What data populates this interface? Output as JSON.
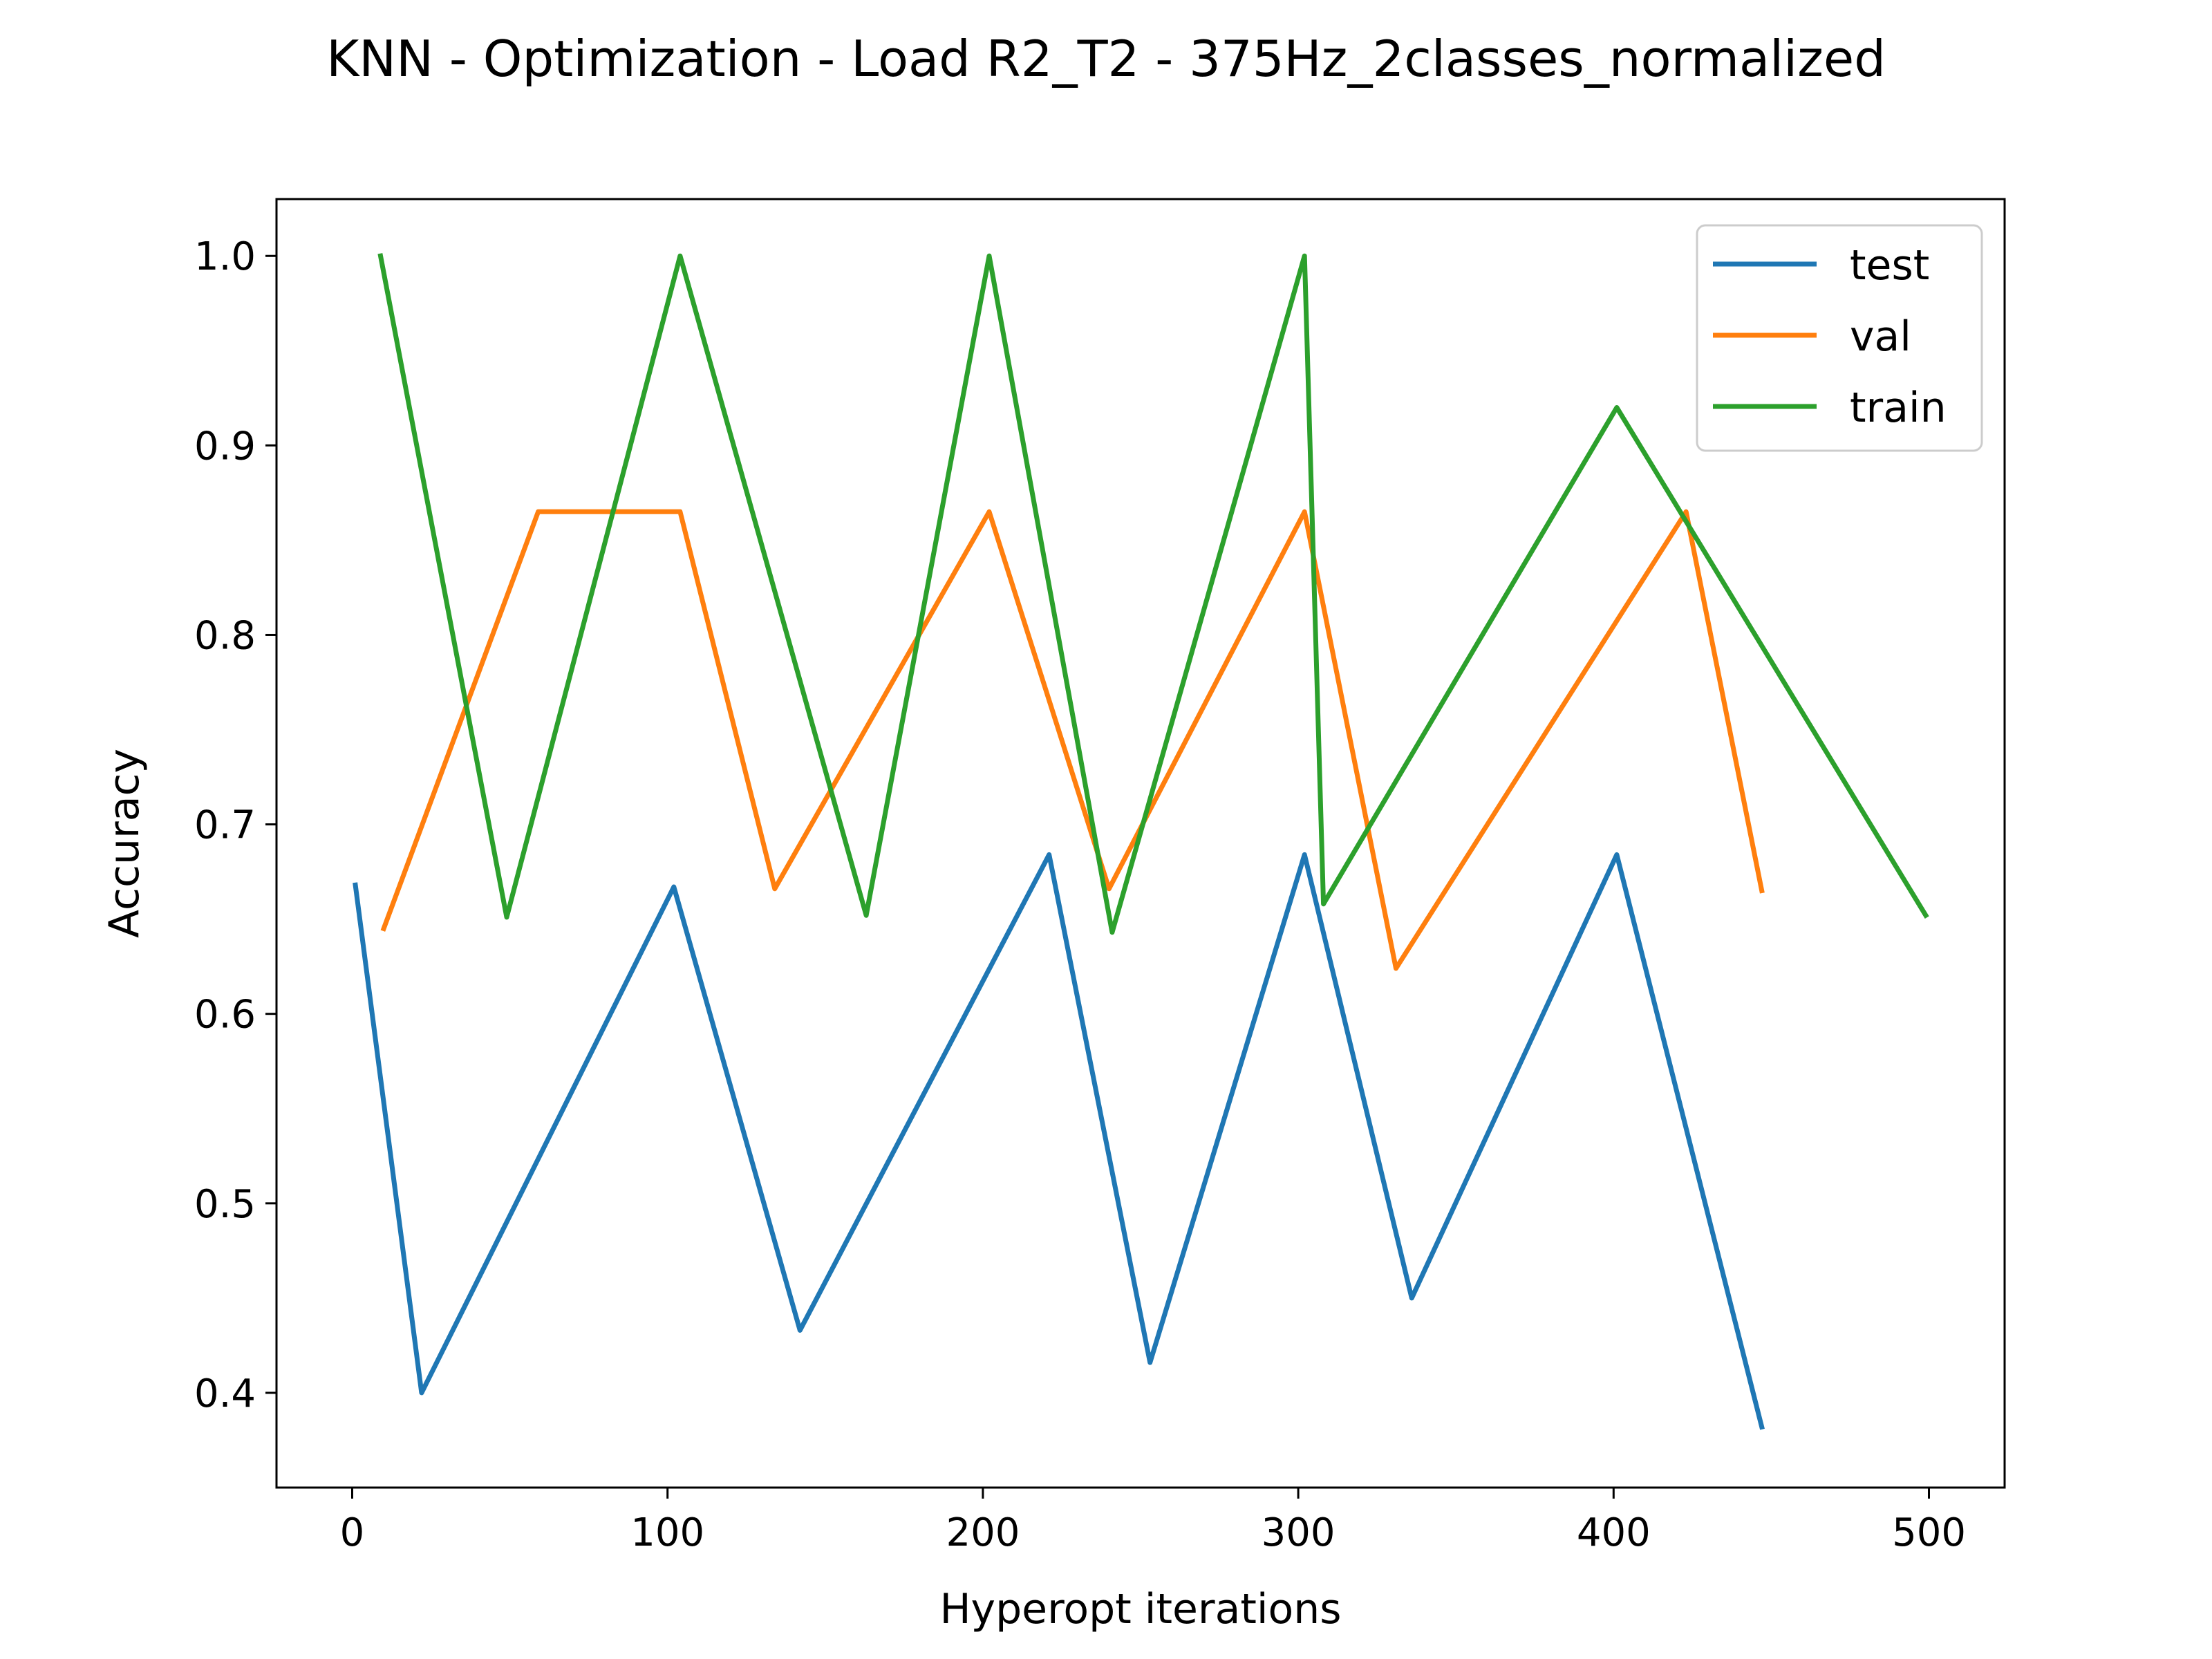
{
  "chart_data": {
    "type": "line",
    "title": "KNN - Optimization - Load R2_T2 - 375Hz_2classes_normalized",
    "xlabel": "Hyperopt iterations",
    "ylabel": "Accuracy",
    "xlim": [
      -24,
      524
    ],
    "ylim": [
      0.35,
      1.03
    ],
    "xticks": [
      0,
      100,
      200,
      300,
      400,
      500
    ],
    "yticks": [
      0.4,
      0.5,
      0.6,
      0.7,
      0.8,
      0.9,
      1.0
    ],
    "xtick_labels": [
      "0",
      "100",
      "200",
      "300",
      "400",
      "500"
    ],
    "ytick_labels": [
      "0.4",
      "0.5",
      "0.6",
      "0.7",
      "0.8",
      "0.9",
      "1.0"
    ],
    "grid": false,
    "legend_position": "top-right",
    "colors": {
      "test": "#1f77b4",
      "val": "#ff7f0e",
      "train": "#2ca02c"
    },
    "series": [
      {
        "name": "test",
        "x": [
          1,
          22,
          102,
          142,
          221,
          253,
          302,
          336,
          401,
          447
        ],
        "y": [
          0.668,
          0.4,
          0.667,
          0.433,
          0.684,
          0.416,
          0.684,
          0.45,
          0.684,
          0.382
        ]
      },
      {
        "name": "val",
        "x": [
          10,
          59,
          104,
          134,
          202,
          240,
          302,
          331,
          423,
          447
        ],
        "y": [
          0.645,
          0.865,
          0.865,
          0.666,
          0.865,
          0.666,
          0.865,
          0.624,
          0.865,
          0.665
        ]
      },
      {
        "name": "train",
        "x": [
          9,
          49,
          104,
          163,
          202,
          241,
          302,
          308,
          401,
          499
        ],
        "y": [
          1.0,
          0.651,
          1.0,
          0.652,
          1.0,
          0.643,
          1.0,
          0.658,
          0.92,
          0.652
        ]
      }
    ]
  }
}
